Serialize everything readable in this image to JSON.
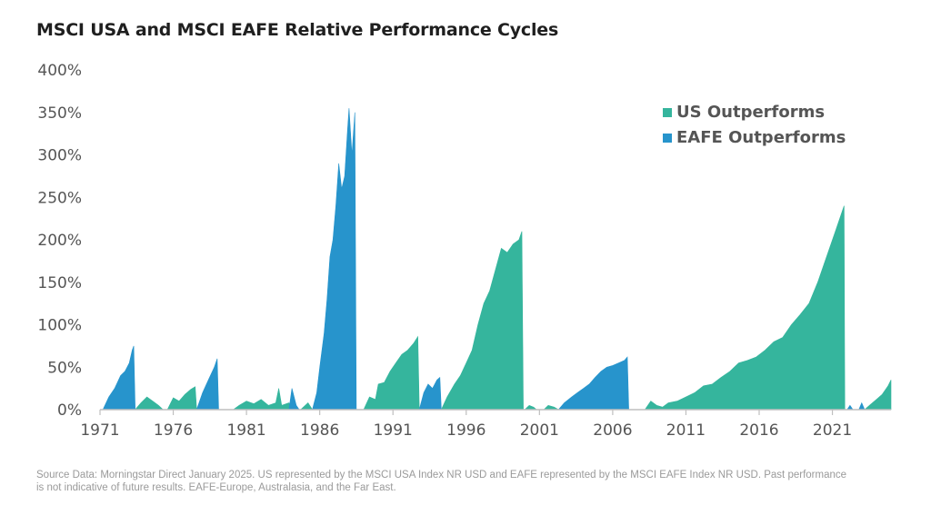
{
  "chart_data": {
    "type": "area",
    "title": "MSCI USA and MSCI EAFE Relative Performance Cycles",
    "xlabel": "",
    "ylabel": "",
    "xlim": [
      1971,
      2025
    ],
    "ylim": [
      0,
      400
    ],
    "y_ticks": [
      "0%",
      "50%",
      "100%",
      "150%",
      "200%",
      "250%",
      "300%",
      "350%",
      "400%"
    ],
    "x_ticks": [
      "1971",
      "1976",
      "1981",
      "1986",
      "1991",
      "1996",
      "2001",
      "2006",
      "2011",
      "2016",
      "2021"
    ],
    "legend_position": "top-right",
    "grid": false,
    "colors": {
      "us": "#35b59d",
      "eafe": "#2794cc",
      "axis": "#bfbfbf"
    },
    "series": [
      {
        "name": "US Outperforms",
        "segments": [
          [
            [
              1973.4,
              0
            ],
            [
              1973.8,
              8
            ],
            [
              1974.2,
              15
            ],
            [
              1974.6,
              10
            ],
            [
              1975.0,
              5
            ],
            [
              1975.3,
              0
            ]
          ],
          [
            [
              1975.6,
              0
            ],
            [
              1976.0,
              14
            ],
            [
              1976.4,
              10
            ],
            [
              1976.8,
              18
            ],
            [
              1977.2,
              24
            ],
            [
              1977.5,
              27
            ],
            [
              1977.6,
              0
            ]
          ],
          [
            [
              1980.1,
              0
            ],
            [
              1980.5,
              5
            ],
            [
              1981.0,
              10
            ],
            [
              1981.5,
              7
            ],
            [
              1982.0,
              12
            ],
            [
              1982.5,
              5
            ],
            [
              1983.0,
              8
            ],
            [
              1983.2,
              25
            ],
            [
              1983.4,
              5
            ],
            [
              1983.9,
              8
            ],
            [
              1984.2,
              0
            ]
          ],
          [
            [
              1984.7,
              0
            ],
            [
              1985.2,
              8
            ],
            [
              1985.5,
              0
            ]
          ],
          [
            [
              1989.0,
              0
            ],
            [
              1989.4,
              15
            ],
            [
              1989.8,
              12
            ],
            [
              1990.0,
              30
            ],
            [
              1990.4,
              32
            ],
            [
              1990.8,
              45
            ],
            [
              1991.2,
              55
            ],
            [
              1991.6,
              65
            ],
            [
              1992.0,
              70
            ],
            [
              1992.4,
              78
            ],
            [
              1992.7,
              86
            ],
            [
              1992.8,
              0
            ]
          ],
          [
            [
              1994.3,
              0
            ],
            [
              1994.7,
              15
            ],
            [
              1995.2,
              30
            ],
            [
              1995.6,
              40
            ],
            [
              1996.0,
              55
            ],
            [
              1996.4,
              70
            ],
            [
              1996.8,
              100
            ],
            [
              1997.2,
              125
            ],
            [
              1997.6,
              140
            ],
            [
              1998.0,
              165
            ],
            [
              1998.4,
              190
            ],
            [
              1998.8,
              185
            ],
            [
              1999.2,
              195
            ],
            [
              1999.6,
              200
            ],
            [
              1999.8,
              210
            ],
            [
              1999.9,
              0
            ]
          ],
          [
            [
              2000.0,
              0
            ],
            [
              2000.3,
              5
            ],
            [
              2000.6,
              3
            ],
            [
              2000.8,
              0
            ]
          ],
          [
            [
              2001.3,
              0
            ],
            [
              2001.6,
              5
            ],
            [
              2002.0,
              3
            ],
            [
              2002.3,
              0
            ]
          ],
          [
            [
              2008.2,
              0
            ],
            [
              2008.6,
              10
            ],
            [
              2009.0,
              5
            ],
            [
              2009.4,
              3
            ],
            [
              2009.8,
              8
            ],
            [
              2010.4,
              10
            ],
            [
              2011.0,
              15
            ],
            [
              2011.6,
              20
            ],
            [
              2012.2,
              28
            ],
            [
              2012.8,
              30
            ],
            [
              2013.4,
              38
            ],
            [
              2014.0,
              45
            ],
            [
              2014.6,
              55
            ],
            [
              2015.2,
              58
            ],
            [
              2015.8,
              62
            ],
            [
              2016.4,
              70
            ],
            [
              2017.0,
              80
            ],
            [
              2017.6,
              85
            ],
            [
              2018.2,
              100
            ],
            [
              2018.8,
              112
            ],
            [
              2019.4,
              125
            ],
            [
              2020.0,
              150
            ],
            [
              2020.6,
              180
            ],
            [
              2021.2,
              210
            ],
            [
              2021.6,
              230
            ],
            [
              2021.8,
              240
            ],
            [
              2021.85,
              0
            ]
          ],
          [
            [
              2023.2,
              0
            ],
            [
              2023.6,
              6
            ],
            [
              2024.0,
              12
            ],
            [
              2024.4,
              18
            ],
            [
              2024.8,
              28
            ],
            [
              2025.0,
              35
            ],
            [
              2025.0,
              0
            ]
          ]
        ]
      },
      {
        "name": "EAFE Outperforms",
        "segments": [
          [
            [
              1971.2,
              0
            ],
            [
              1971.6,
              15
            ],
            [
              1972.0,
              25
            ],
            [
              1972.4,
              40
            ],
            [
              1972.7,
              45
            ],
            [
              1973.0,
              55
            ],
            [
              1973.2,
              70
            ],
            [
              1973.3,
              75
            ],
            [
              1973.4,
              0
            ]
          ],
          [
            [
              1977.6,
              0
            ],
            [
              1978.0,
              20
            ],
            [
              1978.4,
              35
            ],
            [
              1978.8,
              50
            ],
            [
              1979.0,
              60
            ],
            [
              1979.1,
              0
            ]
          ],
          [
            [
              1983.9,
              0
            ],
            [
              1984.1,
              25
            ],
            [
              1984.4,
              5
            ],
            [
              1984.6,
              0
            ]
          ],
          [
            [
              1985.5,
              0
            ],
            [
              1985.8,
              20
            ],
            [
              1986.0,
              50
            ],
            [
              1986.3,
              90
            ],
            [
              1986.5,
              130
            ],
            [
              1986.7,
              180
            ],
            [
              1986.9,
              200
            ],
            [
              1987.1,
              240
            ],
            [
              1987.3,
              290
            ],
            [
              1987.5,
              260
            ],
            [
              1987.7,
              275
            ],
            [
              1987.9,
              330
            ],
            [
              1988.0,
              355
            ],
            [
              1988.2,
              300
            ],
            [
              1988.4,
              350
            ],
            [
              1988.5,
              0
            ]
          ],
          [
            [
              1992.8,
              0
            ],
            [
              1993.1,
              20
            ],
            [
              1993.4,
              30
            ],
            [
              1993.7,
              25
            ],
            [
              1994.0,
              35
            ],
            [
              1994.2,
              38
            ],
            [
              1994.3,
              0
            ]
          ],
          [
            [
              2002.3,
              0
            ],
            [
              2002.7,
              8
            ],
            [
              2003.2,
              15
            ],
            [
              2003.6,
              20
            ],
            [
              2004.0,
              25
            ],
            [
              2004.4,
              30
            ],
            [
              2004.8,
              38
            ],
            [
              2005.2,
              45
            ],
            [
              2005.6,
              50
            ],
            [
              2006.0,
              52
            ],
            [
              2006.4,
              55
            ],
            [
              2006.8,
              58
            ],
            [
              2007.0,
              62
            ],
            [
              2007.1,
              0
            ]
          ],
          [
            [
              2022.0,
              0
            ],
            [
              2022.2,
              5
            ],
            [
              2022.4,
              0
            ]
          ],
          [
            [
              2022.8,
              0
            ],
            [
              2023.0,
              8
            ],
            [
              2023.2,
              0
            ]
          ]
        ]
      }
    ]
  },
  "footer": {
    "source_line1": "Source Data: Morningstar Direct January 2025. US represented by the MSCI USA Index NR USD and EAFE represented by the MSCI EAFE Index NR USD. Past performance",
    "source_line2": "is not indicative of future results. EAFE-Europe, Australasia, and the Far East."
  }
}
